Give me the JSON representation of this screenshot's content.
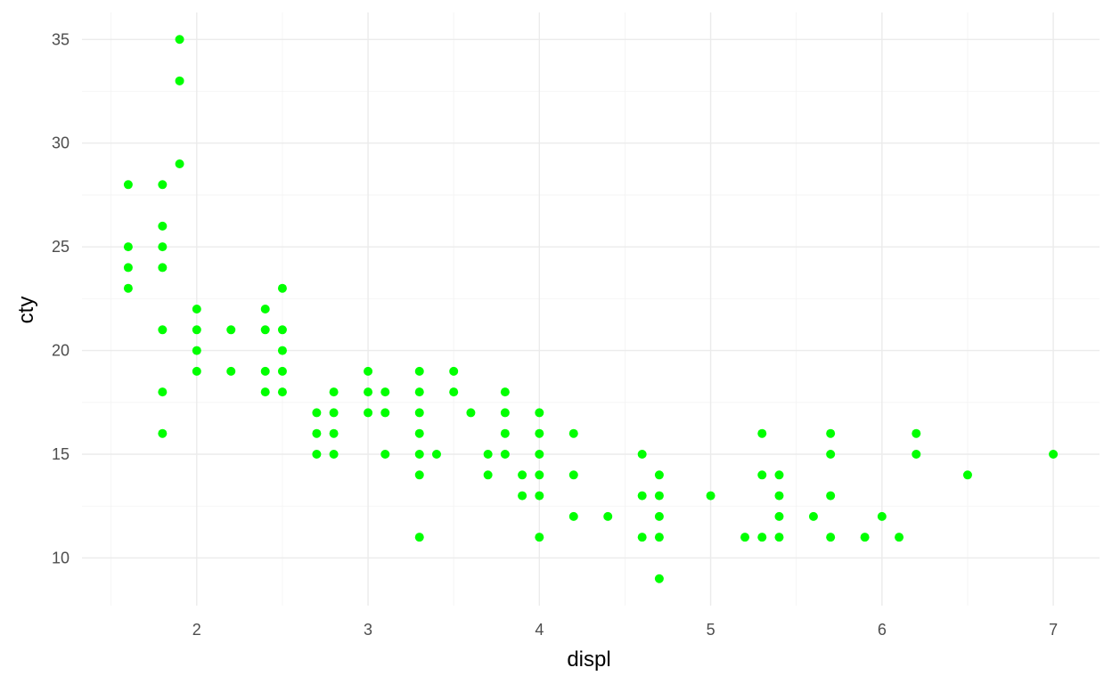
{
  "chart_data": {
    "type": "scatter",
    "title": "",
    "xlabel": "displ",
    "ylabel": "cty",
    "xlim": [
      1.33,
      7.27
    ],
    "ylim": [
      7.7,
      36.3
    ],
    "x_ticks": [
      2,
      3,
      4,
      5,
      6,
      7
    ],
    "y_ticks": [
      10,
      15,
      20,
      25,
      30,
      35
    ],
    "x_minor_ticks": [
      1.5,
      2.5,
      3.5,
      4.5,
      5.5,
      6.5
    ],
    "y_minor_ticks": [
      12.5,
      17.5,
      22.5,
      27.5,
      32.5
    ],
    "grid": true,
    "point_color": "#00ff00",
    "background": "#ffffff",
    "series": [
      {
        "points": [
          [
            1.6,
            28
          ],
          [
            1.6,
            25
          ],
          [
            1.6,
            24
          ],
          [
            1.6,
            23
          ],
          [
            1.8,
            28
          ],
          [
            1.8,
            26
          ],
          [
            1.8,
            25
          ],
          [
            1.8,
            24
          ],
          [
            1.8,
            21
          ],
          [
            1.8,
            18
          ],
          [
            1.8,
            16
          ],
          [
            1.9,
            35
          ],
          [
            1.9,
            33
          ],
          [
            1.9,
            29
          ],
          [
            2.0,
            22
          ],
          [
            2.0,
            21
          ],
          [
            2.0,
            20
          ],
          [
            2.0,
            19
          ],
          [
            2.2,
            21
          ],
          [
            2.2,
            19
          ],
          [
            2.4,
            22
          ],
          [
            2.4,
            21
          ],
          [
            2.4,
            19
          ],
          [
            2.4,
            18
          ],
          [
            2.5,
            23
          ],
          [
            2.5,
            21
          ],
          [
            2.5,
            20
          ],
          [
            2.5,
            19
          ],
          [
            2.5,
            18
          ],
          [
            2.7,
            17
          ],
          [
            2.7,
            16
          ],
          [
            2.7,
            15
          ],
          [
            2.8,
            18
          ],
          [
            2.8,
            17
          ],
          [
            2.8,
            16
          ],
          [
            2.8,
            15
          ],
          [
            3.0,
            19
          ],
          [
            3.0,
            18
          ],
          [
            3.0,
            17
          ],
          [
            3.1,
            18
          ],
          [
            3.1,
            17
          ],
          [
            3.1,
            15
          ],
          [
            3.3,
            19
          ],
          [
            3.3,
            18
          ],
          [
            3.3,
            17
          ],
          [
            3.3,
            16
          ],
          [
            3.3,
            15
          ],
          [
            3.3,
            14
          ],
          [
            3.3,
            11
          ],
          [
            3.4,
            15
          ],
          [
            3.5,
            19
          ],
          [
            3.5,
            18
          ],
          [
            3.6,
            17
          ],
          [
            3.7,
            15
          ],
          [
            3.7,
            14
          ],
          [
            3.8,
            18
          ],
          [
            3.8,
            17
          ],
          [
            3.8,
            16
          ],
          [
            3.8,
            15
          ],
          [
            3.9,
            14
          ],
          [
            3.9,
            13
          ],
          [
            4.0,
            17
          ],
          [
            4.0,
            16
          ],
          [
            4.0,
            15
          ],
          [
            4.0,
            14
          ],
          [
            4.0,
            13
          ],
          [
            4.0,
            11
          ],
          [
            4.2,
            16
          ],
          [
            4.2,
            14
          ],
          [
            4.2,
            12
          ],
          [
            4.4,
            12
          ],
          [
            4.6,
            15
          ],
          [
            4.6,
            13
          ],
          [
            4.6,
            11
          ],
          [
            4.7,
            14
          ],
          [
            4.7,
            13
          ],
          [
            4.7,
            12
          ],
          [
            4.7,
            11
          ],
          [
            4.7,
            9
          ],
          [
            5.0,
            13
          ],
          [
            5.2,
            11
          ],
          [
            5.3,
            16
          ],
          [
            5.3,
            14
          ],
          [
            5.3,
            11
          ],
          [
            5.4,
            14
          ],
          [
            5.4,
            13
          ],
          [
            5.4,
            12
          ],
          [
            5.4,
            11
          ],
          [
            5.6,
            12
          ],
          [
            5.7,
            16
          ],
          [
            5.7,
            15
          ],
          [
            5.7,
            13
          ],
          [
            5.7,
            11
          ],
          [
            5.9,
            11
          ],
          [
            6.0,
            12
          ],
          [
            6.1,
            11
          ],
          [
            6.2,
            16
          ],
          [
            6.2,
            15
          ],
          [
            6.5,
            14
          ],
          [
            7.0,
            15
          ]
        ]
      }
    ]
  }
}
